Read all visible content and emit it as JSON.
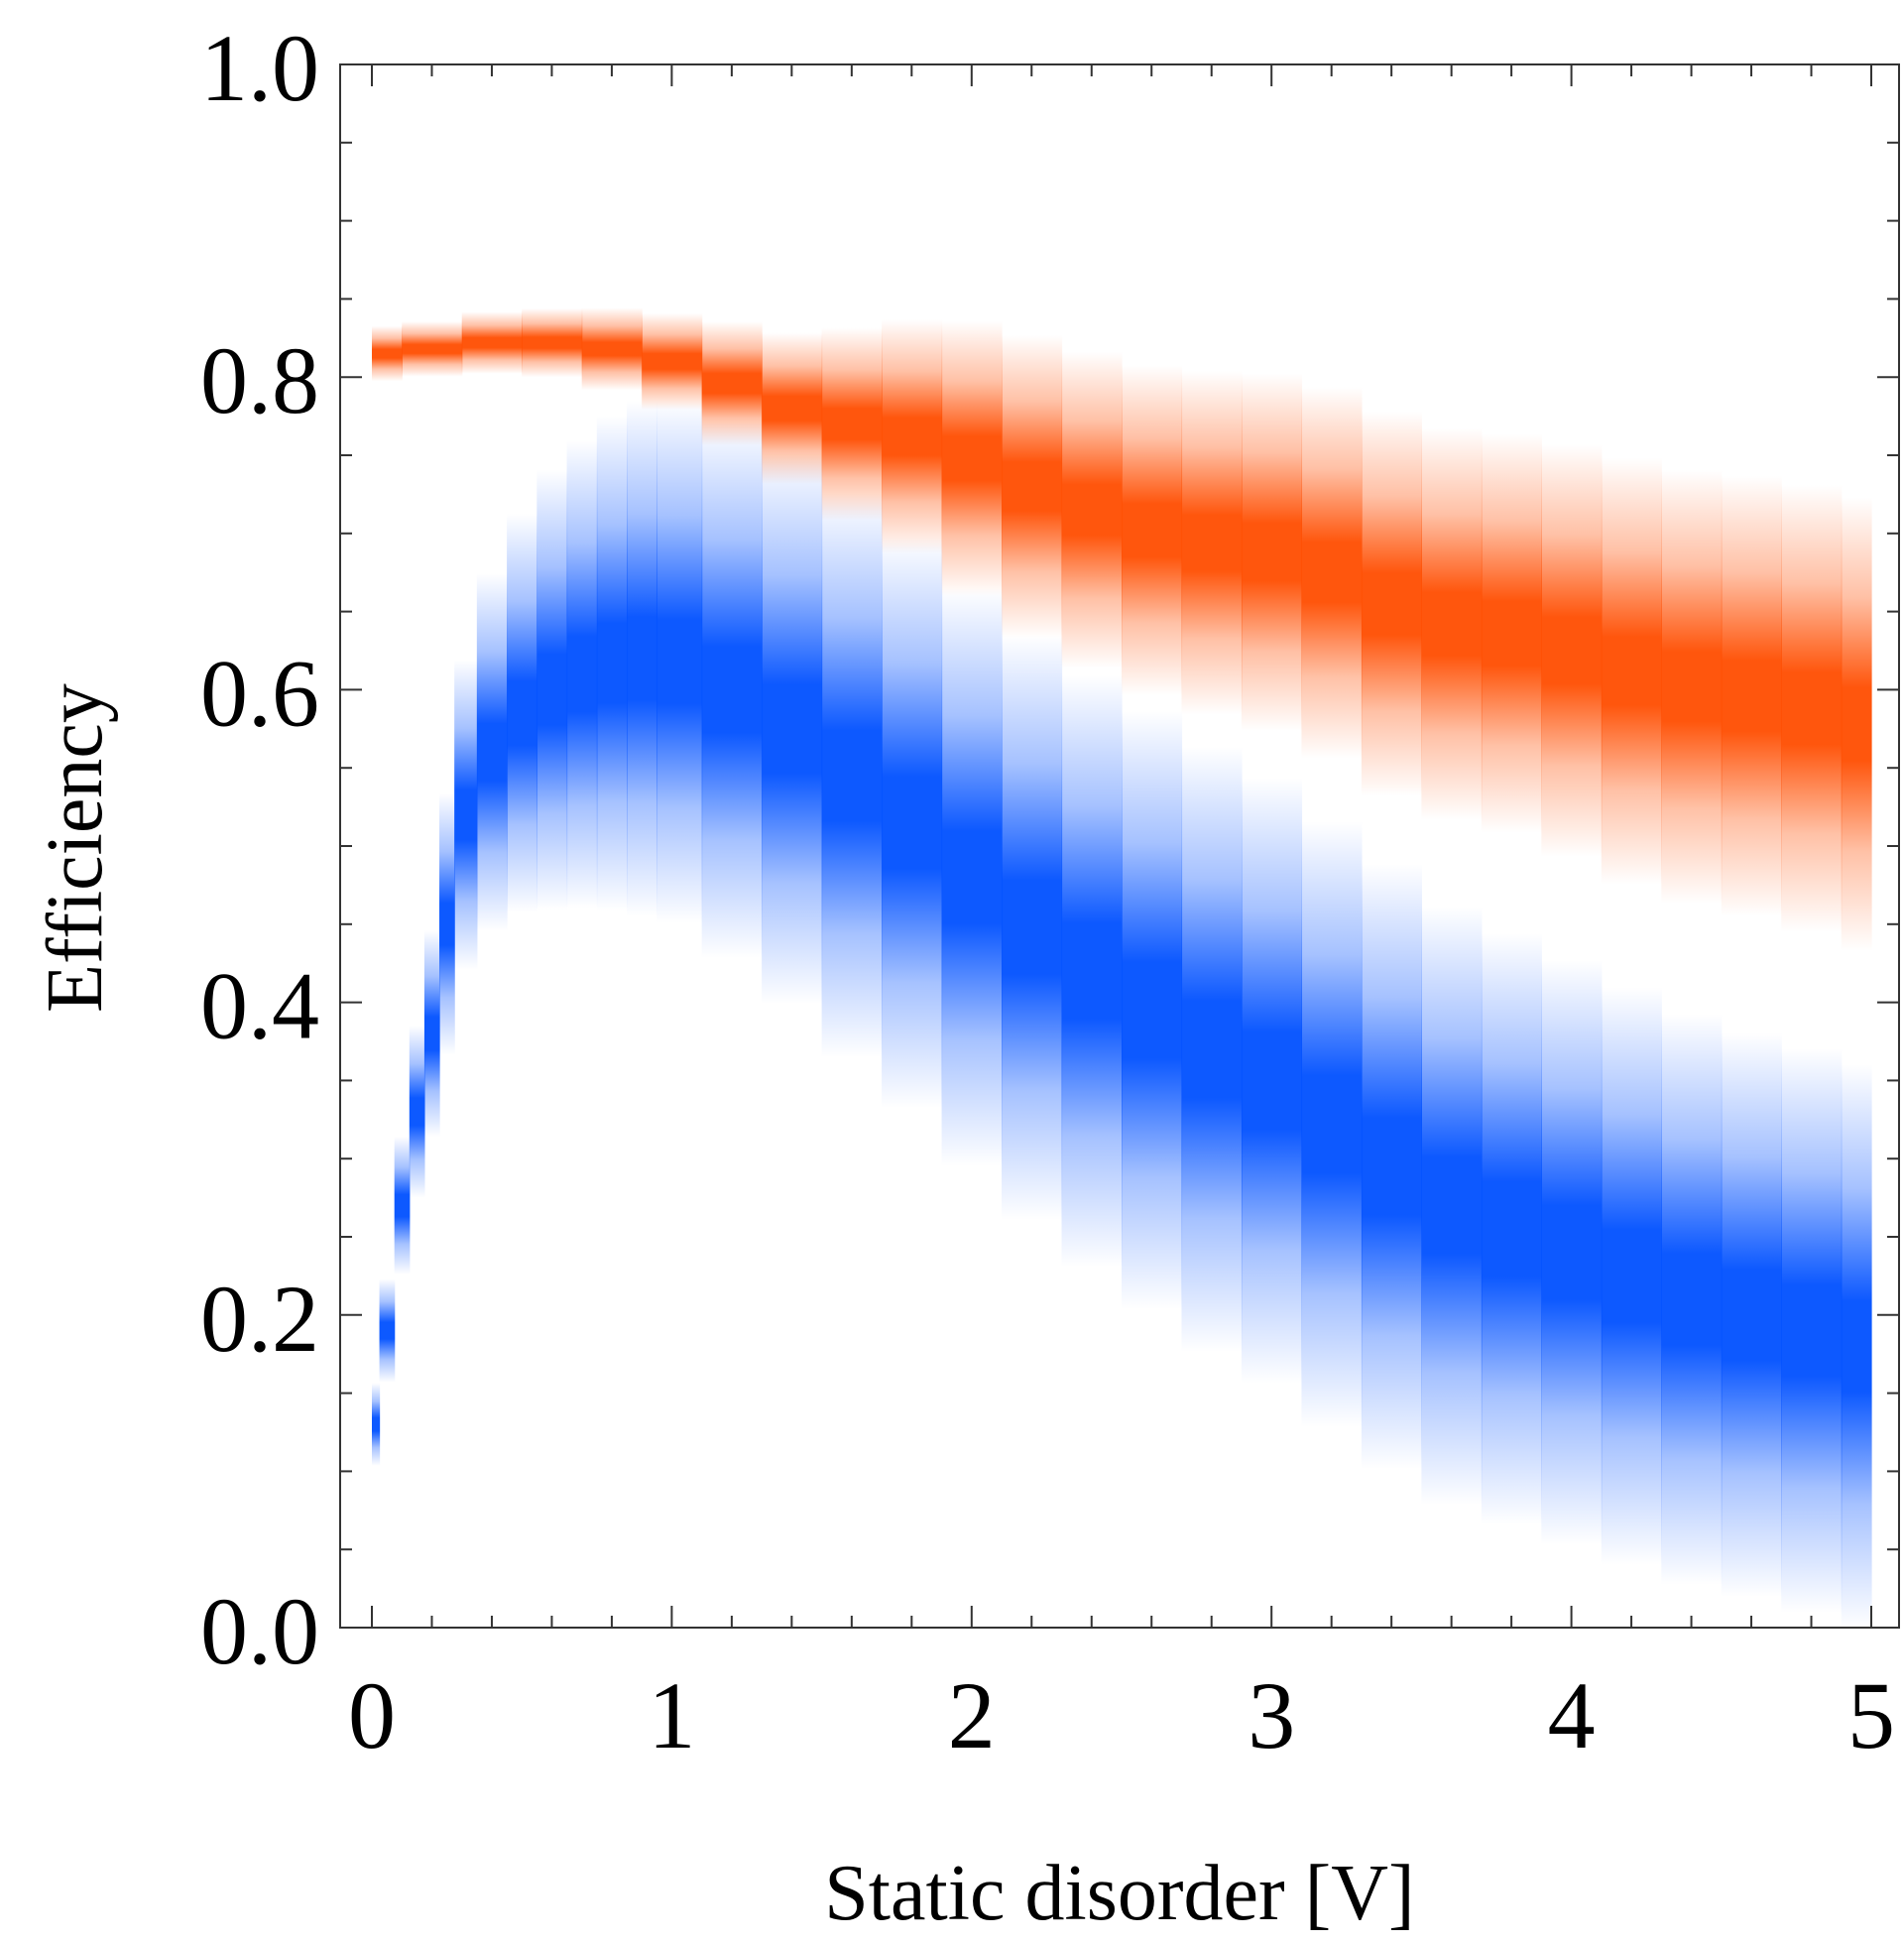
{
  "chart_data": {
    "type": "area",
    "xlabel": "Static disorder [V]",
    "ylabel": "Efficiency",
    "xlim": [
      0,
      5
    ],
    "ylim": [
      0,
      1
    ],
    "x_ticks": [
      0,
      1,
      2,
      3,
      4,
      5
    ],
    "x_tick_labels": [
      "0",
      "1",
      "2",
      "3",
      "4",
      "5"
    ],
    "x_minor_step": 0.2,
    "y_ticks": [
      0.0,
      0.2,
      0.4,
      0.6,
      0.8,
      1.0
    ],
    "y_tick_labels": [
      "0.0",
      "0.2",
      "0.4",
      "0.6",
      "0.8",
      "1.0"
    ],
    "y_minor_step": 0.05,
    "grid": false,
    "series": [
      {
        "name": "orange band",
        "color": "#ff4d00",
        "x": [
          0.0,
          0.2,
          0.4,
          0.6,
          0.8,
          1.0,
          1.2,
          1.4,
          1.6,
          1.8,
          2.0,
          2.2,
          2.4,
          2.6,
          2.8,
          3.0,
          3.2,
          3.4,
          3.6,
          3.8,
          4.0,
          4.2,
          4.4,
          4.6,
          4.8,
          5.0
        ],
        "center": [
          0.815,
          0.818,
          0.822,
          0.822,
          0.818,
          0.81,
          0.796,
          0.78,
          0.77,
          0.762,
          0.748,
          0.73,
          0.715,
          0.702,
          0.694,
          0.688,
          0.675,
          0.655,
          0.642,
          0.636,
          0.625,
          0.612,
          0.602,
          0.596,
          0.588,
          0.578
        ],
        "spread": [
          0.008,
          0.008,
          0.009,
          0.01,
          0.012,
          0.014,
          0.018,
          0.022,
          0.028,
          0.034,
          0.04,
          0.044,
          0.046,
          0.048,
          0.05,
          0.052,
          0.054,
          0.056,
          0.057,
          0.058,
          0.06,
          0.062,
          0.063,
          0.064,
          0.065,
          0.066
        ]
      },
      {
        "name": "blue band",
        "color": "#0050ff",
        "x": [
          0.0,
          0.05,
          0.1,
          0.15,
          0.2,
          0.25,
          0.3,
          0.4,
          0.5,
          0.6,
          0.7,
          0.8,
          0.9,
          1.0,
          1.2,
          1.4,
          1.6,
          1.8,
          2.0,
          2.2,
          2.4,
          2.6,
          2.8,
          3.0,
          3.2,
          3.4,
          3.6,
          3.8,
          4.0,
          4.2,
          4.4,
          4.6,
          4.8,
          5.0
        ],
        "center": [
          0.13,
          0.19,
          0.27,
          0.33,
          0.38,
          0.45,
          0.52,
          0.56,
          0.585,
          0.6,
          0.61,
          0.617,
          0.62,
          0.618,
          0.6,
          0.575,
          0.545,
          0.515,
          0.48,
          0.448,
          0.42,
          0.395,
          0.37,
          0.35,
          0.322,
          0.295,
          0.27,
          0.255,
          0.24,
          0.225,
          0.21,
          0.2,
          0.19,
          0.18
        ],
        "spread": [
          0.012,
          0.015,
          0.02,
          0.025,
          0.03,
          0.038,
          0.045,
          0.052,
          0.058,
          0.064,
          0.068,
          0.072,
          0.075,
          0.076,
          0.078,
          0.08,
          0.082,
          0.083,
          0.084,
          0.085,
          0.086,
          0.087,
          0.088,
          0.088,
          0.088,
          0.088,
          0.087,
          0.086,
          0.085,
          0.084,
          0.083,
          0.082,
          0.082,
          0.082
        ]
      }
    ]
  }
}
